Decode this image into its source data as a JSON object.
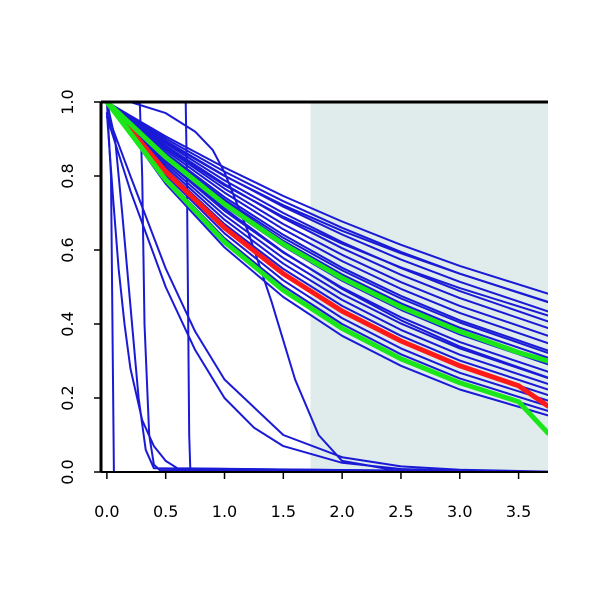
{
  "chart_data": {
    "type": "line",
    "title": "",
    "xlabel": "",
    "ylabel": "",
    "xlim": [
      -0.05,
      3.75
    ],
    "ylim": [
      0.0,
      1.0
    ],
    "x_ticks": [
      "0.0",
      "0.5",
      "1.0",
      "1.5",
      "2.0",
      "2.5",
      "3.0",
      "3.5"
    ],
    "y_ticks": [
      "0.0",
      "0.2",
      "0.4",
      "0.6",
      "0.8",
      "1.0"
    ],
    "grid": false,
    "shaded_region": {
      "x_from": 1.73,
      "x_to": 3.75,
      "color": "#e0ecec"
    },
    "colors": {
      "bundle": "#1a1ad6",
      "central": "#ff1a1a",
      "bounds": "#1ae61a"
    },
    "series": [
      {
        "role": "bundle",
        "color": "#1a1ad6",
        "x": [
          0.0,
          0.035,
          0.06,
          3.75
        ],
        "y": [
          1.0,
          0.8,
          0.0,
          0.0
        ]
      },
      {
        "role": "bundle",
        "color": "#1a1ad6",
        "x": [
          0.0,
          0.07,
          0.13,
          0.2,
          0.27,
          0.33,
          0.4,
          3.75
        ],
        "y": [
          1.0,
          0.9,
          0.7,
          0.45,
          0.2,
          0.06,
          0.01,
          0.0
        ]
      },
      {
        "role": "bundle",
        "color": "#1a1ad6",
        "x": [
          0.0,
          0.28,
          0.3,
          0.32,
          0.36,
          0.4,
          0.45,
          3.75
        ],
        "y": [
          1.0,
          1.0,
          0.8,
          0.4,
          0.1,
          0.02,
          0.005,
          0.0
        ]
      },
      {
        "role": "bundle",
        "color": "#1a1ad6",
        "x": [
          0.0,
          0.05,
          0.1,
          0.15,
          0.2,
          0.3,
          0.4,
          0.5,
          0.6,
          3.75
        ],
        "y": [
          0.97,
          0.75,
          0.55,
          0.4,
          0.28,
          0.14,
          0.07,
          0.03,
          0.01,
          0.0
        ]
      },
      {
        "role": "bundle",
        "color": "#1a1ad6",
        "x": [
          0.0,
          0.67,
          0.68,
          0.7,
          0.71,
          3.75
        ],
        "y": [
          1.0,
          1.0,
          0.8,
          0.1,
          0.0,
          0.0
        ]
      },
      {
        "role": "bundle",
        "color": "#1a1ad6",
        "x": [
          0.0,
          0.2,
          0.5,
          0.75,
          1.0,
          1.5,
          2.0,
          2.5,
          3.0,
          3.75
        ],
        "y": [
          0.97,
          0.8,
          0.55,
          0.38,
          0.25,
          0.1,
          0.04,
          0.015,
          0.006,
          0.001
        ]
      },
      {
        "role": "bundle",
        "color": "#1a1ad6",
        "x": [
          0.0,
          0.2,
          0.5,
          0.75,
          1.0,
          1.25,
          1.5,
          2.0,
          2.5,
          3.0,
          3.75
        ],
        "y": [
          0.96,
          0.76,
          0.5,
          0.33,
          0.2,
          0.12,
          0.07,
          0.025,
          0.008,
          0.003,
          0.0
        ]
      },
      {
        "role": "bundle",
        "color": "#1a1ad6",
        "x": [
          0.0,
          0.2,
          0.5,
          0.75,
          0.9,
          1.0,
          1.2,
          1.4,
          1.6,
          1.8,
          2.0,
          2.5,
          3.75
        ],
        "y": [
          1.0,
          1.0,
          0.97,
          0.92,
          0.87,
          0.81,
          0.65,
          0.46,
          0.25,
          0.1,
          0.03,
          0.002,
          0.0
        ]
      },
      {
        "role": "bundle",
        "color": "#1a1ad6",
        "x": [
          0.0,
          0.5,
          1.0,
          1.5,
          2.0,
          2.5,
          3.0,
          3.75
        ],
        "y": [
          1.0,
          0.907,
          0.823,
          0.746,
          0.677,
          0.614,
          0.557,
          0.482
        ]
      },
      {
        "role": "bundle",
        "color": "#1a1ad6",
        "x": [
          0.0,
          0.5,
          1.0,
          1.5,
          2.0,
          2.5,
          3.0,
          3.75
        ],
        "y": [
          1.0,
          0.901,
          0.812,
          0.732,
          0.66,
          0.595,
          0.536,
          0.459
        ]
      },
      {
        "role": "bundle",
        "color": "#1a1ad6",
        "x": [
          0.0,
          0.5,
          1.0,
          1.5,
          2.0,
          2.5,
          3.0,
          3.75
        ],
        "y": [
          1.0,
          0.895,
          0.801,
          0.717,
          0.642,
          0.574,
          0.514,
          0.434
        ]
      },
      {
        "role": "bundle",
        "color": "#1a1ad6",
        "x": [
          0.0,
          0.5,
          1.0,
          1.5,
          2.0,
          2.5,
          3.0,
          3.75
        ],
        "y": [
          1.0,
          0.888,
          0.788,
          0.7,
          0.621,
          0.551,
          0.489,
          0.407
        ]
      },
      {
        "role": "bundle",
        "color": "#1a1ad6",
        "x": [
          0.0,
          0.5,
          1.0,
          1.5,
          2.0,
          2.5,
          3.0,
          3.75
        ],
        "y": [
          1.0,
          0.882,
          0.778,
          0.686,
          0.605,
          0.533,
          0.47,
          0.389
        ]
      },
      {
        "role": "bundle",
        "color": "#1a1ad6",
        "x": [
          0.0,
          0.5,
          1.0,
          1.5,
          2.0,
          2.5,
          3.0,
          3.75
        ],
        "y": [
          1.0,
          0.875,
          0.766,
          0.67,
          0.587,
          0.513,
          0.449,
          0.368
        ]
      },
      {
        "role": "bundle",
        "color": "#1a1ad6",
        "x": [
          0.0,
          0.5,
          1.0,
          1.5,
          2.0,
          2.5,
          3.0,
          3.75
        ],
        "y": [
          1.0,
          0.869,
          0.755,
          0.656,
          0.57,
          0.495,
          0.43,
          0.348
        ]
      },
      {
        "role": "bundle",
        "color": "#1a1ad6",
        "x": [
          0.0,
          0.5,
          1.0,
          1.5,
          2.0,
          2.5,
          3.0,
          3.75
        ],
        "y": [
          1.0,
          0.862,
          0.743,
          0.641,
          0.552,
          0.476,
          0.41,
          0.328
        ]
      },
      {
        "role": "bundle",
        "color": "#1a1ad6",
        "x": [
          0.0,
          0.5,
          1.0,
          1.5,
          2.0,
          2.5,
          3.0,
          3.75
        ],
        "y": [
          1.0,
          0.855,
          0.731,
          0.625,
          0.534,
          0.456,
          0.39,
          0.309
        ]
      },
      {
        "role": "bundle",
        "color": "#1a1ad6",
        "x": [
          0.0,
          0.5,
          1.0,
          1.5,
          2.0,
          2.5,
          3.0,
          3.75
        ],
        "y": [
          1.0,
          0.848,
          0.719,
          0.61,
          0.517,
          0.438,
          0.372,
          0.291
        ]
      },
      {
        "role": "bundle",
        "color": "#1a1ad6",
        "x": [
          0.0,
          0.5,
          1.0,
          1.5,
          2.0,
          2.5,
          3.0,
          3.75
        ],
        "y": [
          1.0,
          0.84,
          0.706,
          0.593,
          0.498,
          0.418,
          0.351,
          0.271
        ]
      },
      {
        "role": "bundle",
        "color": "#1a1ad6",
        "x": [
          0.0,
          0.5,
          1.0,
          1.5,
          2.0,
          2.5,
          3.0,
          3.75
        ],
        "y": [
          1.0,
          0.833,
          0.694,
          0.578,
          0.481,
          0.401,
          0.334,
          0.254
        ]
      },
      {
        "role": "bundle",
        "color": "#1a1ad6",
        "x": [
          0.0,
          0.5,
          1.0,
          1.5,
          2.0,
          2.5,
          3.0,
          3.75
        ],
        "y": [
          1.0,
          0.826,
          0.682,
          0.563,
          0.465,
          0.384,
          0.317,
          0.238
        ]
      },
      {
        "role": "bundle",
        "color": "#1a1ad6",
        "x": [
          0.0,
          0.5,
          1.0,
          1.5,
          2.0,
          2.5,
          3.0,
          3.75
        ],
        "y": [
          1.0,
          0.819,
          0.67,
          0.549,
          0.449,
          0.368,
          0.301,
          0.223
        ]
      },
      {
        "role": "bundle",
        "color": "#1a1ad6",
        "x": [
          0.0,
          0.5,
          1.0,
          1.5,
          2.0,
          2.5,
          3.0,
          3.75
        ],
        "y": [
          1.0,
          0.811,
          0.658,
          0.533,
          0.433,
          0.351,
          0.285,
          0.208
        ]
      },
      {
        "role": "bundle",
        "color": "#1a1ad6",
        "x": [
          0.0,
          0.5,
          1.0,
          1.5,
          2.0,
          2.5,
          3.0,
          3.75
        ],
        "y": [
          1.0,
          0.803,
          0.645,
          0.518,
          0.416,
          0.334,
          0.268,
          0.193
        ]
      },
      {
        "role": "bundle",
        "color": "#1a1ad6",
        "x": [
          0.0,
          0.5,
          1.0,
          1.5,
          2.0,
          2.5,
          3.0,
          3.75
        ],
        "y": [
          1.0,
          0.795,
          0.632,
          0.503,
          0.4,
          0.318,
          0.253,
          0.178
        ]
      },
      {
        "role": "bundle",
        "color": "#1a1ad6",
        "x": [
          0.0,
          0.5,
          1.0,
          1.5,
          2.0,
          2.5,
          3.0,
          3.75
        ],
        "y": [
          1.0,
          0.787,
          0.62,
          0.488,
          0.384,
          0.302,
          0.238,
          0.165
        ]
      },
      {
        "role": "bundle",
        "color": "#1a1ad6",
        "x": [
          0.0,
          0.5,
          1.0,
          1.5,
          2.0,
          2.5,
          3.0,
          3.75
        ],
        "y": [
          1.0,
          0.779,
          0.607,
          0.473,
          0.368,
          0.287,
          0.223,
          0.153
        ]
      },
      {
        "role": "bundle",
        "color": "#1a1ad6",
        "x": [
          0.0,
          0.5,
          1.0,
          1.5,
          2.0,
          2.5,
          3.0,
          3.75
        ],
        "y": [
          1.0,
          0.892,
          0.8,
          0.721,
          0.652,
          0.591,
          0.536,
          0.46
        ]
      },
      {
        "role": "bundle",
        "color": "#1a1ad6",
        "x": [
          0.0,
          0.5,
          1.0,
          1.5,
          2.0,
          2.5,
          3.0,
          3.75
        ],
        "y": [
          1.0,
          0.877,
          0.775,
          0.69,
          0.617,
          0.553,
          0.497,
          0.423
        ]
      },
      {
        "role": "bundle",
        "color": "#1a1ad6",
        "x": [
          0.0,
          0.5,
          1.0,
          1.5,
          2.0,
          2.5,
          3.0,
          3.75
        ],
        "y": [
          1.0,
          0.857,
          0.736,
          0.633,
          0.545,
          0.469,
          0.404,
          0.322
        ]
      },
      {
        "role": "bundle",
        "color": "#1a1ad6",
        "x": [
          0.0,
          0.5,
          1.0,
          1.5,
          2.0,
          2.5,
          3.0,
          3.75
        ],
        "y": [
          1.0,
          0.846,
          0.712,
          0.595,
          0.495,
          0.41,
          0.339,
          0.255
        ]
      },
      {
        "role": "central",
        "color": "#ff1a1a",
        "x": [
          0.0,
          0.5,
          1.0,
          1.5,
          2.0,
          2.5,
          3.0,
          3.5,
          3.75
        ],
        "y": [
          1.0,
          0.812,
          0.66,
          0.536,
          0.435,
          0.354,
          0.287,
          0.233,
          0.178
        ]
      },
      {
        "role": "bound",
        "color": "#1ae61a",
        "x": [
          0.0,
          0.5,
          1.0,
          1.5,
          2.0,
          2.5,
          3.0,
          3.5,
          3.75
        ],
        "y": [
          1.0,
          0.851,
          0.724,
          0.616,
          0.524,
          0.446,
          0.38,
          0.323,
          0.3
        ]
      },
      {
        "role": "bound",
        "color": "#1ae61a",
        "x": [
          0.0,
          0.5,
          1.0,
          1.5,
          2.0,
          2.5,
          3.0,
          3.5,
          3.75
        ],
        "y": [
          1.0,
          0.79,
          0.622,
          0.491,
          0.388,
          0.306,
          0.241,
          0.19,
          0.105
        ]
      }
    ]
  }
}
